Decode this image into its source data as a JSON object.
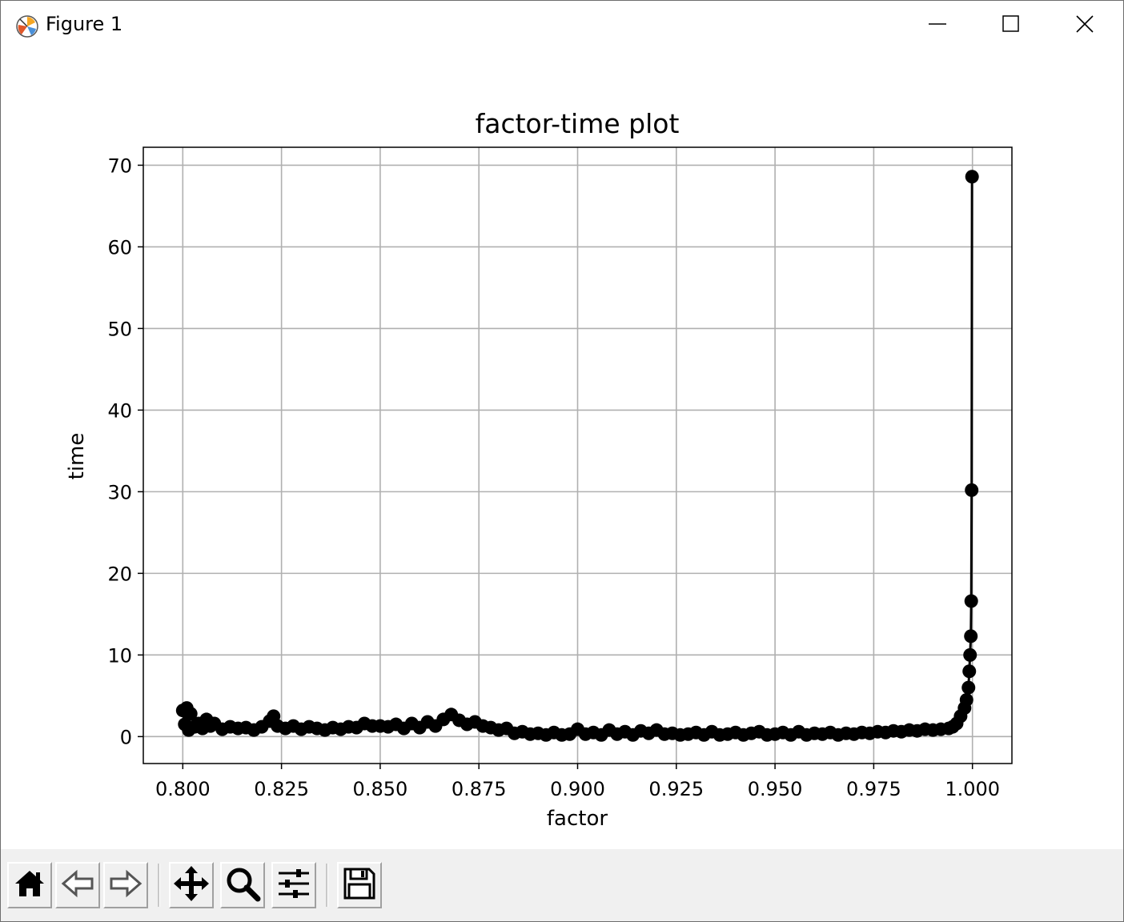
{
  "window": {
    "title": "Figure 1",
    "icons": {
      "app": "matplotlib-logo-icon",
      "minimize": "minimize-icon",
      "maximize": "maximize-icon",
      "close": "close-icon"
    }
  },
  "toolbar": {
    "buttons": [
      {
        "name": "home-button",
        "icon": "home-icon"
      },
      {
        "name": "back-button",
        "icon": "back-arrow-icon"
      },
      {
        "name": "forward-button",
        "icon": "forward-arrow-icon"
      },
      {
        "name": "pan-button",
        "icon": "pan-move-icon"
      },
      {
        "name": "zoom-button",
        "icon": "zoom-magnifier-icon"
      },
      {
        "name": "configure-subplots-button",
        "icon": "sliders-icon"
      },
      {
        "name": "save-button",
        "icon": "floppy-disk-icon"
      }
    ]
  },
  "chart_data": {
    "type": "line",
    "title": "factor-time plot",
    "xlabel": "factor",
    "ylabel": "time",
    "xlim": [
      0.79,
      1.01
    ],
    "ylim": [
      -3.3,
      72.2
    ],
    "xticks": [
      0.8,
      0.825,
      0.85,
      0.875,
      0.9,
      0.925,
      0.95,
      0.975,
      1.0
    ],
    "xtick_labels": [
      "0.800",
      "0.825",
      "0.850",
      "0.875",
      "0.900",
      "0.925",
      "0.950",
      "0.975",
      "1.000"
    ],
    "yticks": [
      0,
      10,
      20,
      30,
      40,
      50,
      60,
      70
    ],
    "ytick_labels": [
      "0",
      "10",
      "20",
      "30",
      "40",
      "50",
      "60",
      "70"
    ],
    "grid": true,
    "marker": "circle",
    "line_color": "#000000",
    "series": [
      {
        "x": [
          0.8,
          0.8005,
          0.801,
          0.8015,
          0.802,
          0.803,
          0.804,
          0.805,
          0.806,
          0.807,
          0.808,
          0.81,
          0.812,
          0.814,
          0.816,
          0.818,
          0.82,
          0.822,
          0.823,
          0.824,
          0.826,
          0.828,
          0.83,
          0.832,
          0.834,
          0.836,
          0.838,
          0.84,
          0.842,
          0.844,
          0.846,
          0.848,
          0.85,
          0.852,
          0.854,
          0.856,
          0.858,
          0.86,
          0.862,
          0.864,
          0.866,
          0.868,
          0.87,
          0.872,
          0.874,
          0.876,
          0.878,
          0.88,
          0.882,
          0.884,
          0.886,
          0.888,
          0.89,
          0.892,
          0.894,
          0.896,
          0.898,
          0.9,
          0.902,
          0.904,
          0.906,
          0.908,
          0.91,
          0.912,
          0.914,
          0.916,
          0.918,
          0.92,
          0.922,
          0.924,
          0.926,
          0.928,
          0.93,
          0.932,
          0.934,
          0.936,
          0.938,
          0.94,
          0.942,
          0.944,
          0.946,
          0.948,
          0.95,
          0.952,
          0.954,
          0.956,
          0.958,
          0.96,
          0.962,
          0.964,
          0.966,
          0.968,
          0.97,
          0.972,
          0.974,
          0.976,
          0.978,
          0.98,
          0.982,
          0.984,
          0.986,
          0.988,
          0.99,
          0.992,
          0.994,
          0.995,
          0.996,
          0.997,
          0.998,
          0.9985,
          0.999,
          0.9992,
          0.9994,
          0.9996,
          0.9997,
          0.9998,
          0.9999
        ],
        "y": [
          3.2,
          1.5,
          3.5,
          0.8,
          2.8,
          1.2,
          1.6,
          1.0,
          2.1,
          1.3,
          1.6,
          0.9,
          1.2,
          1.0,
          1.1,
          0.8,
          1.2,
          1.9,
          2.5,
          1.3,
          1.0,
          1.3,
          0.9,
          1.2,
          1.0,
          0.8,
          1.1,
          0.9,
          1.2,
          1.1,
          1.6,
          1.3,
          1.3,
          1.2,
          1.5,
          1.0,
          1.6,
          1.1,
          1.8,
          1.3,
          2.1,
          2.7,
          2.0,
          1.5,
          1.8,
          1.3,
          1.1,
          0.8,
          1.0,
          0.4,
          0.6,
          0.3,
          0.4,
          0.2,
          0.5,
          0.2,
          0.3,
          0.9,
          0.3,
          0.5,
          0.2,
          0.8,
          0.3,
          0.6,
          0.2,
          0.7,
          0.4,
          0.8,
          0.3,
          0.4,
          0.2,
          0.3,
          0.5,
          0.2,
          0.6,
          0.2,
          0.3,
          0.5,
          0.2,
          0.4,
          0.6,
          0.2,
          0.3,
          0.5,
          0.2,
          0.6,
          0.2,
          0.4,
          0.3,
          0.5,
          0.2,
          0.4,
          0.3,
          0.5,
          0.4,
          0.6,
          0.5,
          0.7,
          0.6,
          0.8,
          0.7,
          0.9,
          0.8,
          0.9,
          1.0,
          1.2,
          1.6,
          2.5,
          3.5,
          4.5,
          6.0,
          8.0,
          10.0,
          12.3,
          16.6,
          30.2,
          68.6
        ]
      }
    ]
  }
}
